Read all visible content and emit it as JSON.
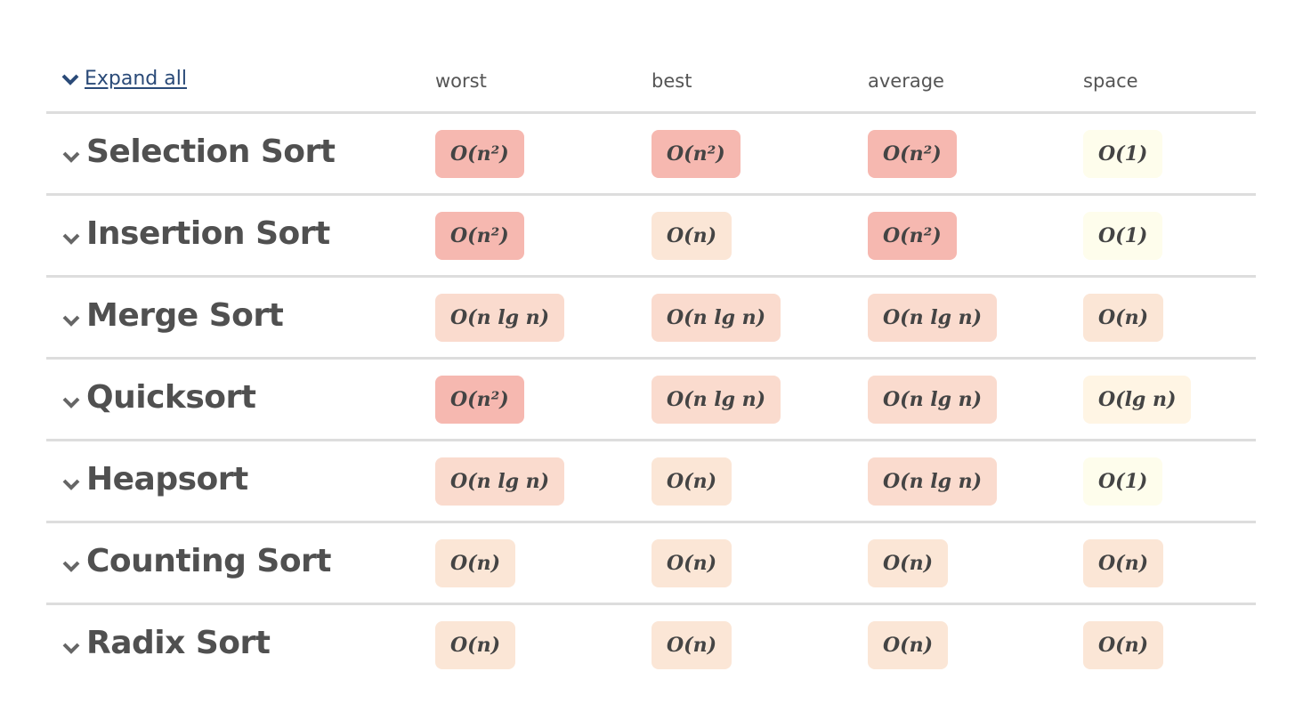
{
  "expand_all": "Expand all",
  "columns": [
    "worst",
    "best",
    "average",
    "space"
  ],
  "colors": {
    "O(n²)": "#f6b8b0",
    "O(n lg n)": "#fadbce",
    "O(n)": "#fbe6d6",
    "O(lg n)": "#fff5e4",
    "O(1)": "#fefdec",
    "link": "#2a4a78"
  },
  "rows": [
    {
      "name": "Selection Sort",
      "values": [
        "O(n²)",
        "O(n²)",
        "O(n²)",
        "O(1)"
      ]
    },
    {
      "name": "Insertion Sort",
      "values": [
        "O(n²)",
        "O(n)",
        "O(n²)",
        "O(1)"
      ]
    },
    {
      "name": "Merge Sort",
      "values": [
        "O(n lg n)",
        "O(n lg n)",
        "O(n lg n)",
        "O(n)"
      ]
    },
    {
      "name": "Quicksort",
      "values": [
        "O(n²)",
        "O(n lg n)",
        "O(n lg n)",
        "O(lg n)"
      ]
    },
    {
      "name": "Heapsort",
      "values": [
        "O(n lg n)",
        "O(n)",
        "O(n lg n)",
        "O(1)"
      ]
    },
    {
      "name": "Counting Sort",
      "values": [
        "O(n)",
        "O(n)",
        "O(n)",
        "O(n)"
      ]
    },
    {
      "name": "Radix Sort",
      "values": [
        "O(n)",
        "O(n)",
        "O(n)",
        "O(n)"
      ]
    }
  ]
}
